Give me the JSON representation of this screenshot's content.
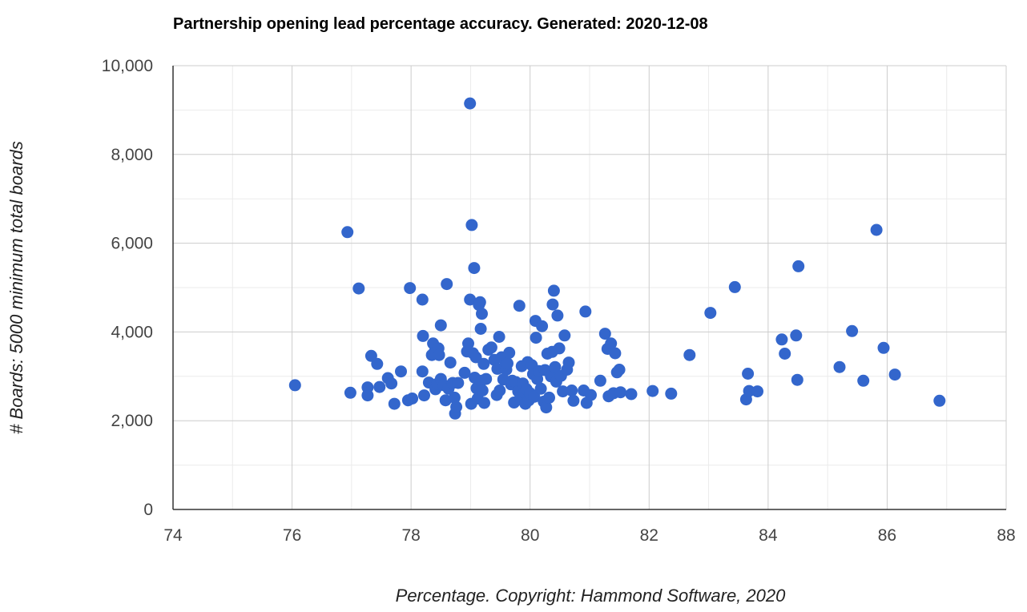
{
  "chart_data": {
    "type": "scatter",
    "title": "Partnership opening lead percentage accuracy. Generated: 2020-12-08",
    "xlabel": "Percentage. Copyright: Hammond Software, 2020",
    "ylabel": "# Boards: 5000 minimum total boards",
    "xlim": [
      74,
      88
    ],
    "ylim": [
      0,
      10000
    ],
    "x_ticks": [
      74,
      76,
      78,
      80,
      82,
      84,
      86,
      88
    ],
    "y_ticks": [
      0,
      2000,
      4000,
      6000,
      8000,
      10000
    ],
    "x_tick_labels": [
      "74",
      "76",
      "78",
      "80",
      "82",
      "84",
      "86",
      "88"
    ],
    "y_tick_labels": [
      "0",
      "2,000",
      "4,000",
      "6,000",
      "8,000",
      "10,000"
    ],
    "grid": true,
    "legend": "none",
    "marker_color": "#3366cc",
    "points": [
      [
        76.05,
        2800
      ],
      [
        76.93,
        6250
      ],
      [
        76.98,
        2630
      ],
      [
        77.12,
        4980
      ],
      [
        77.27,
        2750
      ],
      [
        77.27,
        2570
      ],
      [
        77.33,
        3460
      ],
      [
        77.43,
        3280
      ],
      [
        77.47,
        2760
      ],
      [
        77.61,
        2960
      ],
      [
        77.67,
        2840
      ],
      [
        77.72,
        2380
      ],
      [
        77.83,
        3110
      ],
      [
        77.95,
        2460
      ],
      [
        77.98,
        4990
      ],
      [
        78.02,
        2500
      ],
      [
        78.19,
        4730
      ],
      [
        78.19,
        3110
      ],
      [
        78.2,
        3910
      ],
      [
        78.22,
        2570
      ],
      [
        78.3,
        2860
      ],
      [
        78.35,
        3480
      ],
      [
        78.37,
        3740
      ],
      [
        78.39,
        3540
      ],
      [
        78.41,
        2710
      ],
      [
        78.44,
        2830
      ],
      [
        78.46,
        3630
      ],
      [
        78.47,
        3480
      ],
      [
        78.5,
        2940
      ],
      [
        78.5,
        4150
      ],
      [
        78.55,
        2800
      ],
      [
        78.58,
        2460
      ],
      [
        78.6,
        5080
      ],
      [
        78.63,
        2720
      ],
      [
        78.66,
        3310
      ],
      [
        78.7,
        2850
      ],
      [
        78.73,
        2520
      ],
      [
        78.74,
        2160
      ],
      [
        78.76,
        2310
      ],
      [
        78.79,
        2850
      ],
      [
        78.9,
        3080
      ],
      [
        78.94,
        3560
      ],
      [
        78.96,
        3740
      ],
      [
        78.99,
        4730
      ],
      [
        78.99,
        9150
      ],
      [
        79.01,
        2380
      ],
      [
        79.02,
        6410
      ],
      [
        79.04,
        3520
      ],
      [
        79.06,
        5440
      ],
      [
        79.07,
        2970
      ],
      [
        79.09,
        3430
      ],
      [
        79.1,
        2730
      ],
      [
        79.12,
        2500
      ],
      [
        79.14,
        4610
      ],
      [
        79.16,
        4670
      ],
      [
        79.17,
        4070
      ],
      [
        79.18,
        2900
      ],
      [
        79.19,
        4410
      ],
      [
        79.2,
        2680
      ],
      [
        79.22,
        3280
      ],
      [
        79.23,
        2400
      ],
      [
        79.26,
        2940
      ],
      [
        79.3,
        3600
      ],
      [
        79.35,
        3650
      ],
      [
        79.4,
        3370
      ],
      [
        79.44,
        2580
      ],
      [
        79.45,
        3170
      ],
      [
        79.48,
        3890
      ],
      [
        79.49,
        2680
      ],
      [
        79.52,
        3430
      ],
      [
        79.55,
        2930
      ],
      [
        79.58,
        3240
      ],
      [
        79.6,
        3150
      ],
      [
        79.62,
        3290
      ],
      [
        79.65,
        3530
      ],
      [
        79.68,
        2820
      ],
      [
        79.7,
        2900
      ],
      [
        79.73,
        2410
      ],
      [
        79.76,
        2870
      ],
      [
        79.8,
        2660
      ],
      [
        79.82,
        4590
      ],
      [
        79.84,
        2530
      ],
      [
        79.86,
        3230
      ],
      [
        79.88,
        2840
      ],
      [
        79.9,
        2640
      ],
      [
        79.92,
        2380
      ],
      [
        79.94,
        2710
      ],
      [
        79.96,
        3320
      ],
      [
        79.98,
        2460
      ],
      [
        80.0,
        2620
      ],
      [
        80.03,
        3250
      ],
      [
        80.05,
        3050
      ],
      [
        80.07,
        2540
      ],
      [
        80.09,
        4250
      ],
      [
        80.1,
        3870
      ],
      [
        80.12,
        2940
      ],
      [
        80.15,
        3120
      ],
      [
        80.18,
        2720
      ],
      [
        80.2,
        4130
      ],
      [
        80.23,
        2430
      ],
      [
        80.25,
        3140
      ],
      [
        80.27,
        2300
      ],
      [
        80.29,
        3510
      ],
      [
        80.32,
        2520
      ],
      [
        80.35,
        3000
      ],
      [
        80.37,
        3550
      ],
      [
        80.38,
        4620
      ],
      [
        80.4,
        4930
      ],
      [
        80.42,
        3210
      ],
      [
        80.44,
        2880
      ],
      [
        80.46,
        4370
      ],
      [
        80.49,
        3630
      ],
      [
        80.52,
        3010
      ],
      [
        80.55,
        2660
      ],
      [
        80.58,
        3920
      ],
      [
        80.62,
        3150
      ],
      [
        80.65,
        3310
      ],
      [
        80.7,
        2680
      ],
      [
        80.73,
        2450
      ],
      [
        80.9,
        2680
      ],
      [
        80.93,
        4460
      ],
      [
        80.95,
        2400
      ],
      [
        81.02,
        2580
      ],
      [
        81.18,
        2900
      ],
      [
        81.26,
        3960
      ],
      [
        81.3,
        3620
      ],
      [
        81.32,
        2550
      ],
      [
        81.36,
        3740
      ],
      [
        81.4,
        2620
      ],
      [
        81.43,
        3520
      ],
      [
        81.46,
        3090
      ],
      [
        81.5,
        3150
      ],
      [
        81.52,
        2640
      ],
      [
        81.7,
        2600
      ],
      [
        82.06,
        2670
      ],
      [
        82.37,
        2610
      ],
      [
        82.68,
        3480
      ],
      [
        83.03,
        4430
      ],
      [
        83.44,
        5010
      ],
      [
        83.63,
        2480
      ],
      [
        83.66,
        3060
      ],
      [
        83.68,
        2670
      ],
      [
        83.82,
        2660
      ],
      [
        84.23,
        3830
      ],
      [
        84.28,
        3510
      ],
      [
        84.47,
        3920
      ],
      [
        84.49,
        2920
      ],
      [
        84.51,
        5480
      ],
      [
        85.2,
        3210
      ],
      [
        85.41,
        4020
      ],
      [
        85.6,
        2900
      ],
      [
        85.82,
        6300
      ],
      [
        85.94,
        3640
      ],
      [
        86.13,
        3040
      ],
      [
        86.88,
        2450
      ]
    ]
  }
}
